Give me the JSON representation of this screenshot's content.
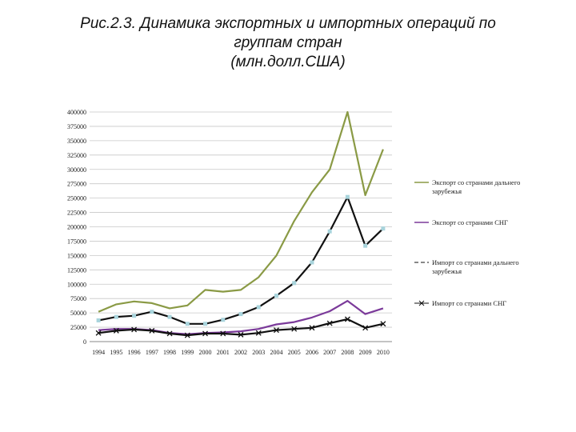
{
  "title_lines": [
    "Рис.2.3. Динамика экспортных и импортных операций по",
    "группам стран",
    "(млн.долл.США)"
  ],
  "chart_data": {
    "type": "line",
    "x": [
      "1994",
      "1995",
      "1996",
      "1997",
      "1998",
      "1999",
      "2000",
      "2001",
      "2002",
      "2003",
      "2004",
      "2005",
      "2006",
      "2007",
      "2008",
      "2009",
      "2010"
    ],
    "ylim": [
      0,
      400000
    ],
    "yticks": [
      0,
      25000,
      50000,
      75000,
      100000,
      125000,
      150000,
      175000,
      200000,
      225000,
      250000,
      275000,
      300000,
      325000,
      350000,
      375000,
      400000
    ],
    "grid": true,
    "legend_position": "right",
    "series": [
      {
        "name": "Экспорт со странами дальнего зарубежья",
        "name_lines": [
          "Экспорт со странами дальнего",
          "зарубежья"
        ],
        "color": "#8a9a45",
        "marker": "none",
        "values": [
          52000,
          65000,
          70000,
          67000,
          58000,
          63000,
          90000,
          87000,
          90000,
          112000,
          150000,
          210000,
          260000,
          300000,
          400000,
          255000,
          335000
        ]
      },
      {
        "name": "Экспорт со странами СНГ",
        "name_lines": [
          "Экспорт со странами СНГ"
        ],
        "color": "#7b3a9a",
        "marker": "none",
        "values": [
          20000,
          22000,
          22000,
          20000,
          15000,
          13000,
          15000,
          16000,
          18000,
          22000,
          30000,
          34000,
          42000,
          53000,
          71000,
          48000,
          58000
        ]
      },
      {
        "name": "Импорт со странами дальнего зарубежья",
        "name_lines": [
          "Импорт со странами дальнего",
          "зарубежья"
        ],
        "color": "#111111",
        "marker": "square",
        "marker_color": "#a8d4dc",
        "values": [
          37000,
          43000,
          45000,
          52000,
          43000,
          31000,
          31000,
          38000,
          48000,
          60000,
          80000,
          102000,
          138000,
          192000,
          252000,
          167000,
          197000
        ]
      },
      {
        "name": "Импорт со странами СНГ",
        "name_lines": [
          "Импорт со странами СНГ"
        ],
        "color": "#111111",
        "marker": "x",
        "values": [
          15000,
          19000,
          21000,
          19000,
          14000,
          11000,
          14000,
          14000,
          12000,
          15000,
          20000,
          22000,
          24000,
          32000,
          39000,
          24000,
          31000
        ]
      }
    ]
  }
}
